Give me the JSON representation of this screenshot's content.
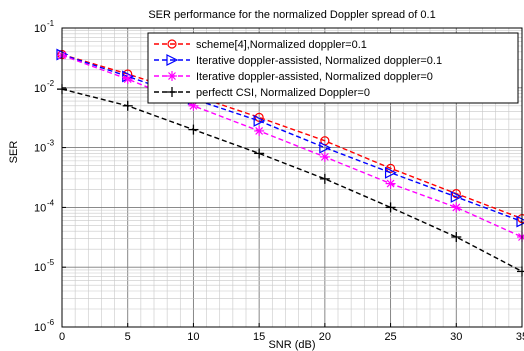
{
  "chart_data": {
    "type": "line",
    "title": "SER performance for the normalized Doppler spread of 0.1",
    "xlabel": "SNR (dB)",
    "ylabel": "SER",
    "xlim": [
      0,
      35
    ],
    "ylim": [
      1e-06,
      0.1
    ],
    "yscale": "log",
    "grid": true,
    "legend_position": "top-right",
    "x_ticks": [
      "0",
      "5",
      "10",
      "15",
      "20",
      "25",
      "30",
      "35"
    ],
    "y_ticks": [
      {
        "base": "10",
        "exp": "-1",
        "value": 0.1
      },
      {
        "base": "10",
        "exp": "-2",
        "value": 0.01
      },
      {
        "base": "10",
        "exp": "-3",
        "value": 0.001
      },
      {
        "base": "10",
        "exp": "-4",
        "value": 0.0001
      },
      {
        "base": "10",
        "exp": "-5",
        "value": 1e-05
      },
      {
        "base": "10",
        "exp": "-6",
        "value": 1e-06
      }
    ],
    "x": [
      0,
      5,
      10,
      15,
      20,
      25,
      30,
      35
    ],
    "series": [
      {
        "name": "scheme[4],Normalized doppler=0.1",
        "color": "#ff0000",
        "marker": "circle",
        "values": [
          0.036,
          0.017,
          0.0075,
          0.0032,
          0.0013,
          0.00045,
          0.00017,
          6.5e-05
        ]
      },
      {
        "name": "Iterative doppler-assisted, Normalized doppler=0.1",
        "color": "#0000ff",
        "marker": "triangle-right",
        "values": [
          0.036,
          0.0155,
          0.0065,
          0.0028,
          0.001,
          0.00038,
          0.00015,
          5.8e-05
        ]
      },
      {
        "name": "Iterative doppler-assisted, Normalized doppler=0",
        "color": "#ff00ff",
        "marker": "star",
        "values": [
          0.035,
          0.014,
          0.005,
          0.0019,
          0.0007,
          0.00025,
          0.0001,
          3.2e-05
        ]
      },
      {
        "name": "perfectt CSI, Normalized Doppler=0",
        "color": "#000000",
        "marker": "plus",
        "values": [
          0.0095,
          0.005,
          0.002,
          0.0008,
          0.0003,
          0.0001,
          3.2e-05,
          8.5e-06
        ]
      }
    ]
  }
}
